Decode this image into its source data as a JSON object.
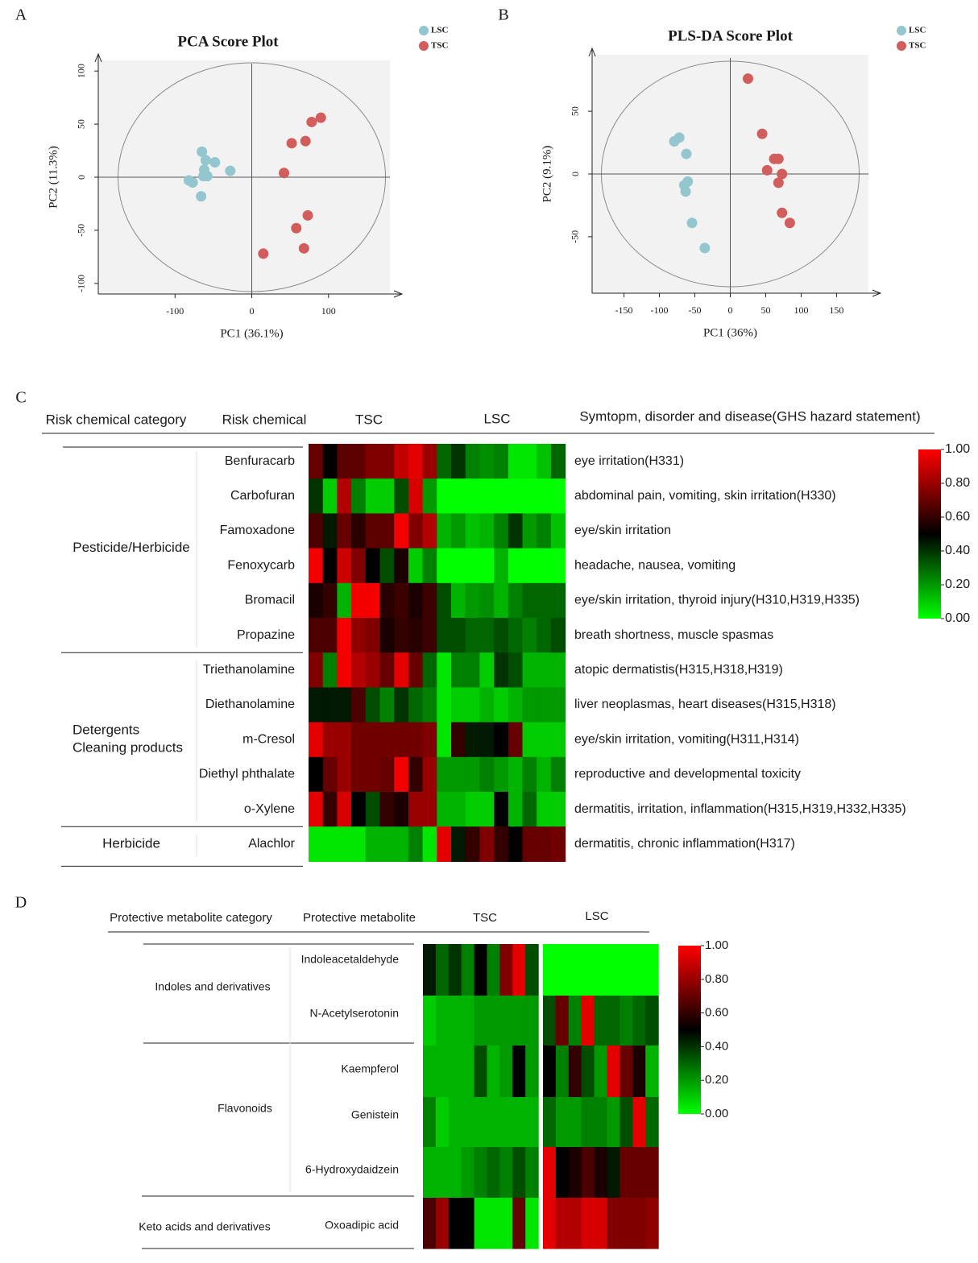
{
  "panel_labels": [
    "A",
    "B",
    "C",
    "D"
  ],
  "colors": {
    "lsc": "#93c6cf",
    "tsc": "#d25d5d",
    "plot_bg": "#f2f2f2",
    "scale_low": "#00ff00",
    "scale_mid": "#000000",
    "scale_high": "#ff0000"
  },
  "chart_data": [
    {
      "type": "scatter",
      "panel": "A",
      "title": "PCA Score Plot",
      "xlabel": "PC1 (36.1%)",
      "ylabel": "PC2 (11.3%)",
      "xlim": [
        -200,
        180
      ],
      "ylim": [
        -110,
        110
      ],
      "xticks": [
        -100,
        0,
        100
      ],
      "xtick_labels": [
        "-100",
        "0",
        "100"
      ],
      "yticks": [
        -100,
        -50,
        0,
        50,
        100
      ],
      "ytick_labels": [
        "-100",
        "-50",
        "0",
        "50",
        "100"
      ],
      "legend": [
        "LSC",
        "TSC"
      ],
      "series": [
        {
          "name": "LSC",
          "x": [
            -65,
            -60,
            -62,
            -48,
            -58,
            -28,
            -63,
            -82,
            -77,
            -66
          ],
          "y": [
            24,
            16,
            7,
            14,
            1,
            6,
            1,
            -3,
            -5,
            -18
          ]
        },
        {
          "name": "TSC",
          "x": [
            90,
            78,
            70,
            52,
            42,
            73,
            58,
            68,
            15
          ],
          "y": [
            56,
            52,
            34,
            32,
            4,
            -36,
            -48,
            -67,
            -72
          ]
        }
      ]
    },
    {
      "type": "scatter",
      "panel": "B",
      "title": "PLS-DA Score Plot",
      "xlabel": "PC1 (36%)",
      "ylabel": "PC2 (9.1%)",
      "xlim": [
        -195,
        195
      ],
      "ylim": [
        -95,
        95
      ],
      "xticks": [
        -150,
        -100,
        -50,
        0,
        50,
        100,
        150
      ],
      "xtick_labels": [
        "-150",
        "-100",
        "-50",
        "0",
        "50",
        "100",
        "150"
      ],
      "yticks": [
        -50,
        0,
        50
      ],
      "ytick_labels": [
        "-50",
        "0",
        "50"
      ],
      "legend": [
        "LSC",
        "TSC"
      ],
      "series": [
        {
          "name": "LSC",
          "x": [
            -72,
            -79,
            -62,
            -60,
            -65,
            -63,
            -54,
            -36
          ],
          "y": [
            29,
            26,
            16,
            -6,
            -9,
            -14,
            -39,
            -59
          ]
        },
        {
          "name": "TSC",
          "x": [
            25,
            45,
            62,
            68,
            52,
            73,
            68,
            73,
            84
          ],
          "y": [
            76,
            32,
            12,
            12,
            3,
            0,
            -7,
            -31,
            -39
          ]
        }
      ]
    },
    {
      "type": "heatmap",
      "panel": "C",
      "headers": {
        "category": "Risk chemical category",
        "chemical": "Risk chemical",
        "tsc": "TSC",
        "lsc": "LSC",
        "symptom": "Symtopm, disorder and disease(GHS hazard statement)"
      },
      "groups": [
        {
          "label": [
            "Pesticide/Herbicide"
          ],
          "rows": 6
        },
        {
          "label": [
            "Detergents",
            "Cleaning products"
          ],
          "rows": 5
        },
        {
          "label": [
            "Herbicide"
          ],
          "rows": 1
        }
      ],
      "rows": [
        "Benfuracarb",
        "Carbofuran",
        "Famoxadone",
        "Fenoxycarb",
        "Bromacil",
        "Propazine",
        "Triethanolamine",
        "Diethanolamine",
        "m-Cresol",
        "Diethyl phthalate",
        "o-Xylene",
        "Alachlor"
      ],
      "symptoms": [
        "eye irritation(H331)",
        "abdominal pain, vomiting, skin irritation(H330)",
        "eye/skin irritation",
        "headache, nausea, vomiting",
        "eye/skin irritation, thyroid injury(H310,H319,H335)",
        "breath shortness, muscle spasmas",
        "atopic dermatistis(H315,H318,H319)",
        "liver neoplasmas, heart diseases(H315,H318)",
        "eye/skin irritation, vomiting(H311,H314)",
        "reproductive and developmental toxicity",
        "dermatitis, irritation, inflammation(H315,H319,H332,H335)",
        "dermatitis, chronic inflammation(H317)"
      ],
      "columns": {
        "TSC": 9,
        "LSC": 9
      },
      "values": [
        [
          0.7,
          0.5,
          0.68,
          0.68,
          0.75,
          0.75,
          0.88,
          0.95,
          0.8,
          0.3,
          0.4,
          0.25,
          0.22,
          0.25,
          0.05,
          0.05,
          0.12,
          0.3
        ],
        [
          0.4,
          0.1,
          0.85,
          0.25,
          0.1,
          0.1,
          0.35,
          0.92,
          0.2,
          0.0,
          0.0,
          0.0,
          0.0,
          0.0,
          0.0,
          0.0,
          0.0,
          0.0
        ],
        [
          0.65,
          0.45,
          0.7,
          0.58,
          0.68,
          0.68,
          0.98,
          0.75,
          0.85,
          0.15,
          0.2,
          0.12,
          0.15,
          0.25,
          0.4,
          0.2,
          0.25,
          0.12
        ],
        [
          0.98,
          0.5,
          0.9,
          0.75,
          0.5,
          0.35,
          0.55,
          0.1,
          0.25,
          0.0,
          0.0,
          0.0,
          0.0,
          0.15,
          0.0,
          0.0,
          0.0,
          0.0
        ],
        [
          0.55,
          0.6,
          0.15,
          0.98,
          0.98,
          0.58,
          0.62,
          0.55,
          0.62,
          0.35,
          0.15,
          0.2,
          0.22,
          0.15,
          0.25,
          0.3,
          0.3,
          0.3
        ],
        [
          0.65,
          0.65,
          0.98,
          0.78,
          0.75,
          0.55,
          0.6,
          0.58,
          0.62,
          0.35,
          0.35,
          0.3,
          0.3,
          0.35,
          0.3,
          0.25,
          0.3,
          0.35
        ],
        [
          0.75,
          0.25,
          0.98,
          0.85,
          0.8,
          0.7,
          0.95,
          0.7,
          0.3,
          0.05,
          0.25,
          0.25,
          0.1,
          0.4,
          0.35,
          0.15,
          0.15,
          0.15
        ],
        [
          0.45,
          0.45,
          0.45,
          0.65,
          0.35,
          0.25,
          0.4,
          0.3,
          0.25,
          0.05,
          0.1,
          0.1,
          0.15,
          0.1,
          0.15,
          0.2,
          0.2,
          0.2
        ],
        [
          0.95,
          0.8,
          0.8,
          0.72,
          0.72,
          0.72,
          0.72,
          0.72,
          0.75,
          0.05,
          0.6,
          0.45,
          0.45,
          0.5,
          0.7,
          0.1,
          0.1,
          0.1
        ],
        [
          0.5,
          0.7,
          0.8,
          0.72,
          0.72,
          0.7,
          0.98,
          0.6,
          0.8,
          0.2,
          0.2,
          0.2,
          0.25,
          0.2,
          0.15,
          0.25,
          0.15,
          0.25
        ],
        [
          0.95,
          0.6,
          0.92,
          0.5,
          0.35,
          0.6,
          0.55,
          0.8,
          0.8,
          0.15,
          0.15,
          0.1,
          0.1,
          0.5,
          0.15,
          0.3,
          0.1,
          0.1
        ],
        [
          0.05,
          0.05,
          0.05,
          0.05,
          0.15,
          0.15,
          0.15,
          0.25,
          0.05,
          0.95,
          0.45,
          0.6,
          0.75,
          0.6,
          0.5,
          0.7,
          0.7,
          0.72
        ]
      ],
      "scale": {
        "min": 0,
        "max": 1,
        "ticks": [
          "1.00",
          "0.80",
          "0.60",
          "0.40",
          "0.20",
          "0.00"
        ]
      }
    },
    {
      "type": "heatmap",
      "panel": "D",
      "headers": {
        "category": "Protective metabolite category",
        "metabolite": "Protective metabolite",
        "tsc": "TSC",
        "lsc": "LSC"
      },
      "groups": [
        {
          "label": "Indoles and derivatives",
          "rows": 2
        },
        {
          "label": "Flavonoids",
          "rows": 3
        },
        {
          "label": "Keto acids and derivatives",
          "rows": 1
        }
      ],
      "rows": [
        "Indoleacetaldehyde",
        "N-Acetylserotonin",
        "Kaempferol",
        "Genistein",
        "6-Hydroxydaidzein",
        "Oxoadipic acid"
      ],
      "columns": {
        "TSC": 9,
        "LSC": 9
      },
      "values": [
        [
          0.45,
          0.3,
          0.4,
          0.25,
          0.5,
          0.25,
          0.75,
          0.95,
          0.35,
          0.0,
          0.0,
          0.0,
          0.0,
          0.0,
          0.0,
          0.0,
          0.0,
          0.0
        ],
        [
          0.1,
          0.15,
          0.15,
          0.15,
          0.2,
          0.2,
          0.2,
          0.2,
          0.2,
          0.35,
          0.7,
          0.25,
          0.95,
          0.3,
          0.3,
          0.25,
          0.3,
          0.35
        ],
        [
          0.15,
          0.15,
          0.15,
          0.15,
          0.35,
          0.15,
          0.2,
          0.5,
          0.2,
          0.5,
          0.25,
          0.6,
          0.35,
          0.2,
          0.95,
          0.7,
          0.55,
          0.15
        ],
        [
          0.25,
          0.1,
          0.15,
          0.15,
          0.15,
          0.15,
          0.15,
          0.15,
          0.15,
          0.3,
          0.2,
          0.2,
          0.25,
          0.25,
          0.2,
          0.35,
          0.95,
          0.3
        ],
        [
          0.15,
          0.15,
          0.15,
          0.2,
          0.25,
          0.3,
          0.25,
          0.35,
          0.25,
          0.95,
          0.5,
          0.55,
          0.65,
          0.55,
          0.45,
          0.7,
          0.7,
          0.7
        ],
        [
          0.65,
          0.8,
          0.5,
          0.5,
          0.05,
          0.05,
          0.05,
          0.7,
          0.05,
          0.95,
          0.85,
          0.85,
          0.92,
          0.92,
          0.75,
          0.75,
          0.75,
          0.78
        ]
      ],
      "scale": {
        "min": 0,
        "max": 1,
        "ticks": [
          "1.00",
          "0.80",
          "0.60",
          "0.40",
          "0.20",
          "0.00"
        ]
      }
    }
  ]
}
